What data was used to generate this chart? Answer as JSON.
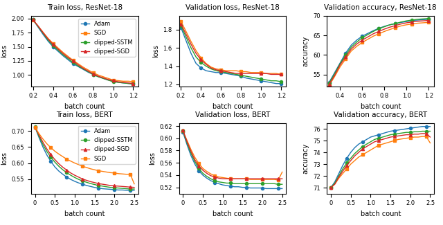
{
  "colors": {
    "Adam": "#1f77b4",
    "SGD": "#ff7f0e",
    "clipped-SSTM": "#2ca02c",
    "clipped-SGD": "#d62728"
  },
  "markers": {
    "Adam": "o",
    "SGD": "s",
    "clipped-SSTM": "o",
    "clipped-SGD": "^"
  },
  "resnet_train_loss": {
    "title": "Train loss, ResNet-18",
    "xlabel": "batch count",
    "ylabel": "loss",
    "xlim": [
      18000,
      125000
    ],
    "ylim": [
      0.8,
      2.05
    ],
    "legend_order": [
      "Adam",
      "SGD",
      "clipped-SSTM",
      "clipped-SGD"
    ],
    "x": [
      20000,
      25000,
      30000,
      35000,
      40000,
      45000,
      50000,
      55000,
      60000,
      65000,
      70000,
      75000,
      80000,
      85000,
      90000,
      95000,
      100000,
      105000,
      110000,
      115000,
      120000
    ],
    "Adam": [
      1.98,
      1.85,
      1.72,
      1.6,
      1.5,
      1.42,
      1.34,
      1.27,
      1.2,
      1.15,
      1.1,
      1.05,
      1.01,
      0.97,
      0.94,
      0.91,
      0.89,
      0.87,
      0.86,
      0.85,
      0.84
    ],
    "SGD": [
      1.97,
      1.87,
      1.76,
      1.65,
      1.56,
      1.48,
      1.4,
      1.33,
      1.26,
      1.2,
      1.14,
      1.09,
      1.04,
      1.0,
      0.97,
      0.94,
      0.91,
      0.9,
      0.89,
      0.89,
      0.88
    ],
    "clipped-SSTM": [
      1.98,
      1.86,
      1.74,
      1.62,
      1.52,
      1.44,
      1.36,
      1.29,
      1.22,
      1.16,
      1.11,
      1.06,
      1.01,
      0.97,
      0.94,
      0.91,
      0.88,
      0.87,
      0.86,
      0.85,
      0.84
    ],
    "clipped-SGD": [
      1.98,
      1.87,
      1.75,
      1.64,
      1.54,
      1.46,
      1.38,
      1.31,
      1.25,
      1.18,
      1.12,
      1.07,
      1.02,
      0.98,
      0.95,
      0.92,
      0.9,
      0.88,
      0.87,
      0.86,
      0.85
    ]
  },
  "resnet_val_loss": {
    "title": "Validation loss, ResNet-18",
    "xlabel": "batch count",
    "ylabel": "loss",
    "xlim": [
      18000,
      125000
    ],
    "ylim": [
      1.18,
      1.95
    ],
    "x": [
      20000,
      25000,
      30000,
      35000,
      40000,
      45000,
      50000,
      55000,
      60000,
      65000,
      70000,
      75000,
      80000,
      85000,
      90000,
      95000,
      100000,
      105000,
      110000,
      115000,
      120000
    ],
    "Adam": [
      1.82,
      1.68,
      1.54,
      1.43,
      1.38,
      1.35,
      1.34,
      1.33,
      1.33,
      1.32,
      1.31,
      1.3,
      1.29,
      1.27,
      1.26,
      1.25,
      1.24,
      1.23,
      1.22,
      1.21,
      1.21
    ],
    "SGD": [
      1.89,
      1.78,
      1.67,
      1.57,
      1.49,
      1.43,
      1.39,
      1.37,
      1.36,
      1.35,
      1.35,
      1.35,
      1.34,
      1.34,
      1.33,
      1.33,
      1.33,
      1.32,
      1.32,
      1.32,
      1.31
    ],
    "clipped-SSTM": [
      1.84,
      1.72,
      1.6,
      1.5,
      1.44,
      1.4,
      1.37,
      1.35,
      1.34,
      1.33,
      1.32,
      1.31,
      1.3,
      1.29,
      1.28,
      1.27,
      1.26,
      1.25,
      1.24,
      1.24,
      1.23
    ],
    "clipped-SGD": [
      1.86,
      1.75,
      1.64,
      1.54,
      1.47,
      1.42,
      1.38,
      1.36,
      1.35,
      1.34,
      1.33,
      1.32,
      1.32,
      1.32,
      1.32,
      1.32,
      1.32,
      1.32,
      1.31,
      1.31,
      1.31
    ]
  },
  "resnet_val_acc": {
    "title": "Validation accuracy, ResNet-18",
    "xlabel": "batch count",
    "ylabel": "accuracy",
    "xlim": [
      28000,
      125000
    ],
    "ylim": [
      52,
      70
    ],
    "x": [
      30000,
      35000,
      40000,
      45000,
      50000,
      55000,
      60000,
      65000,
      70000,
      75000,
      80000,
      85000,
      90000,
      95000,
      100000,
      105000,
      110000,
      115000,
      120000
    ],
    "Adam": [
      53.0,
      55.5,
      58.0,
      60.5,
      62.5,
      63.8,
      64.8,
      65.5,
      66.2,
      66.8,
      67.3,
      67.7,
      68.0,
      68.3,
      68.5,
      68.8,
      68.9,
      69.0,
      69.1
    ],
    "SGD": [
      52.2,
      54.5,
      57.0,
      59.0,
      61.0,
      62.2,
      63.2,
      64.0,
      64.8,
      65.4,
      66.0,
      66.5,
      67.0,
      67.4,
      67.7,
      67.9,
      68.1,
      68.2,
      68.3
    ],
    "clipped-SSTM": [
      52.8,
      55.2,
      57.8,
      60.0,
      62.0,
      63.3,
      64.4,
      65.2,
      66.0,
      66.7,
      67.2,
      67.7,
      68.0,
      68.4,
      68.7,
      68.9,
      69.1,
      69.2,
      69.3
    ],
    "clipped-SGD": [
      52.5,
      54.8,
      57.5,
      59.5,
      61.5,
      62.8,
      63.8,
      64.6,
      65.4,
      66.0,
      66.6,
      67.1,
      67.5,
      67.9,
      68.2,
      68.4,
      68.6,
      68.7,
      68.8
    ]
  },
  "bert_train_loss": {
    "title": "Train loss, BERT",
    "xlabel": "batch count",
    "ylabel": "loss",
    "xlim": [
      -100,
      2600
    ],
    "ylim": [
      0.505,
      0.725
    ],
    "legend_order": [
      "Adam",
      "clipped-SSTM",
      "clipped-SGD",
      "SGD"
    ],
    "x": [
      0,
      100,
      200,
      300,
      400,
      500,
      600,
      700,
      800,
      900,
      1000,
      1100,
      1200,
      1300,
      1400,
      1500,
      1600,
      1700,
      1800,
      1900,
      2000,
      2100,
      2200,
      2300,
      2400,
      2500
    ],
    "Adam": [
      0.712,
      0.68,
      0.65,
      0.625,
      0.605,
      0.588,
      0.575,
      0.565,
      0.556,
      0.549,
      0.543,
      0.538,
      0.534,
      0.53,
      0.527,
      0.524,
      0.522,
      0.52,
      0.519,
      0.518,
      0.517,
      0.516,
      0.516,
      0.515,
      0.515,
      0.515
    ],
    "SGD": [
      0.712,
      0.692,
      0.675,
      0.66,
      0.648,
      0.637,
      0.628,
      0.62,
      0.612,
      0.606,
      0.6,
      0.595,
      0.59,
      0.586,
      0.582,
      0.579,
      0.576,
      0.574,
      0.572,
      0.57,
      0.569,
      0.567,
      0.566,
      0.565,
      0.565,
      0.535
    ],
    "clipped-SSTM": [
      0.713,
      0.684,
      0.658,
      0.636,
      0.618,
      0.603,
      0.59,
      0.579,
      0.57,
      0.562,
      0.555,
      0.549,
      0.544,
      0.54,
      0.536,
      0.533,
      0.53,
      0.528,
      0.526,
      0.524,
      0.523,
      0.522,
      0.521,
      0.52,
      0.519,
      0.519
    ],
    "clipped-SGD": [
      0.712,
      0.688,
      0.665,
      0.644,
      0.626,
      0.611,
      0.598,
      0.587,
      0.578,
      0.569,
      0.562,
      0.556,
      0.55,
      0.546,
      0.542,
      0.539,
      0.536,
      0.534,
      0.532,
      0.53,
      0.529,
      0.528,
      0.527,
      0.526,
      0.525,
      0.524
    ]
  },
  "bert_val_loss": {
    "title": "Validation loss, BERT",
    "xlabel": "batch count",
    "ylabel": "loss",
    "xlim": [
      -100,
      2600
    ],
    "ylim": [
      0.51,
      0.625
    ],
    "x": [
      0,
      100,
      200,
      300,
      400,
      500,
      600,
      700,
      800,
      900,
      1000,
      1100,
      1200,
      1300,
      1400,
      1500,
      1600,
      1700,
      1800,
      1900,
      2000,
      2100,
      2200,
      2300,
      2400,
      2500
    ],
    "Adam": [
      0.61,
      0.59,
      0.572,
      0.558,
      0.547,
      0.54,
      0.535,
      0.531,
      0.528,
      0.526,
      0.524,
      0.523,
      0.522,
      0.521,
      0.521,
      0.52,
      0.52,
      0.519,
      0.519,
      0.519,
      0.519,
      0.518,
      0.518,
      0.518,
      0.518,
      0.518
    ],
    "SGD": [
      0.612,
      0.597,
      0.582,
      0.569,
      0.559,
      0.551,
      0.546,
      0.542,
      0.539,
      0.537,
      0.536,
      0.535,
      0.534,
      0.534,
      0.534,
      0.534,
      0.534,
      0.533,
      0.533,
      0.533,
      0.533,
      0.533,
      0.533,
      0.533,
      0.532,
      0.545
    ],
    "clipped-SSTM": [
      0.612,
      0.593,
      0.576,
      0.562,
      0.551,
      0.543,
      0.538,
      0.534,
      0.531,
      0.529,
      0.528,
      0.527,
      0.527,
      0.526,
      0.526,
      0.526,
      0.526,
      0.526,
      0.526,
      0.526,
      0.526,
      0.526,
      0.526,
      0.526,
      0.525,
      0.525
    ],
    "clipped-SGD": [
      0.613,
      0.595,
      0.579,
      0.565,
      0.555,
      0.548,
      0.543,
      0.539,
      0.537,
      0.535,
      0.534,
      0.534,
      0.534,
      0.534,
      0.534,
      0.534,
      0.534,
      0.534,
      0.534,
      0.534,
      0.534,
      0.534,
      0.534,
      0.534,
      0.534,
      0.534
    ]
  },
  "bert_val_acc": {
    "title": "Validation accuracy, BERT",
    "xlabel": "batch count",
    "ylabel": "accuracy",
    "xlim": [
      -100,
      2600
    ],
    "ylim": [
      70.5,
      76.5
    ],
    "x": [
      0,
      100,
      200,
      300,
      400,
      500,
      600,
      700,
      800,
      900,
      1000,
      1100,
      1200,
      1300,
      1400,
      1500,
      1600,
      1700,
      1800,
      1900,
      2000,
      2100,
      2200,
      2300,
      2400,
      2500
    ],
    "Adam": [
      71.0,
      71.5,
      72.2,
      72.9,
      73.5,
      74.0,
      74.4,
      74.7,
      74.9,
      75.1,
      75.3,
      75.4,
      75.5,
      75.6,
      75.7,
      75.8,
      75.85,
      75.9,
      75.95,
      76.0,
      76.05,
      76.1,
      76.15,
      76.2,
      76.2,
      76.2
    ],
    "SGD": [
      71.0,
      71.3,
      71.8,
      72.2,
      72.6,
      73.0,
      73.3,
      73.6,
      73.8,
      74.0,
      74.2,
      74.4,
      74.6,
      74.7,
      74.8,
      74.9,
      75.0,
      75.1,
      75.15,
      75.2,
      75.25,
      75.3,
      75.3,
      75.35,
      75.35,
      74.8
    ],
    "clipped-SSTM": [
      71.0,
      71.4,
      72.0,
      72.6,
      73.1,
      73.5,
      73.9,
      74.2,
      74.5,
      74.7,
      74.9,
      75.1,
      75.2,
      75.3,
      75.4,
      75.5,
      75.55,
      75.6,
      75.65,
      75.7,
      75.7,
      75.75,
      75.75,
      75.8,
      75.8,
      75.8
    ],
    "clipped-SGD": [
      71.0,
      71.3,
      71.9,
      72.4,
      72.9,
      73.3,
      73.7,
      74.0,
      74.3,
      74.5,
      74.7,
      74.9,
      75.0,
      75.1,
      75.2,
      75.3,
      75.35,
      75.4,
      75.45,
      75.5,
      75.5,
      75.55,
      75.55,
      75.6,
      75.6,
      75.3
    ]
  }
}
